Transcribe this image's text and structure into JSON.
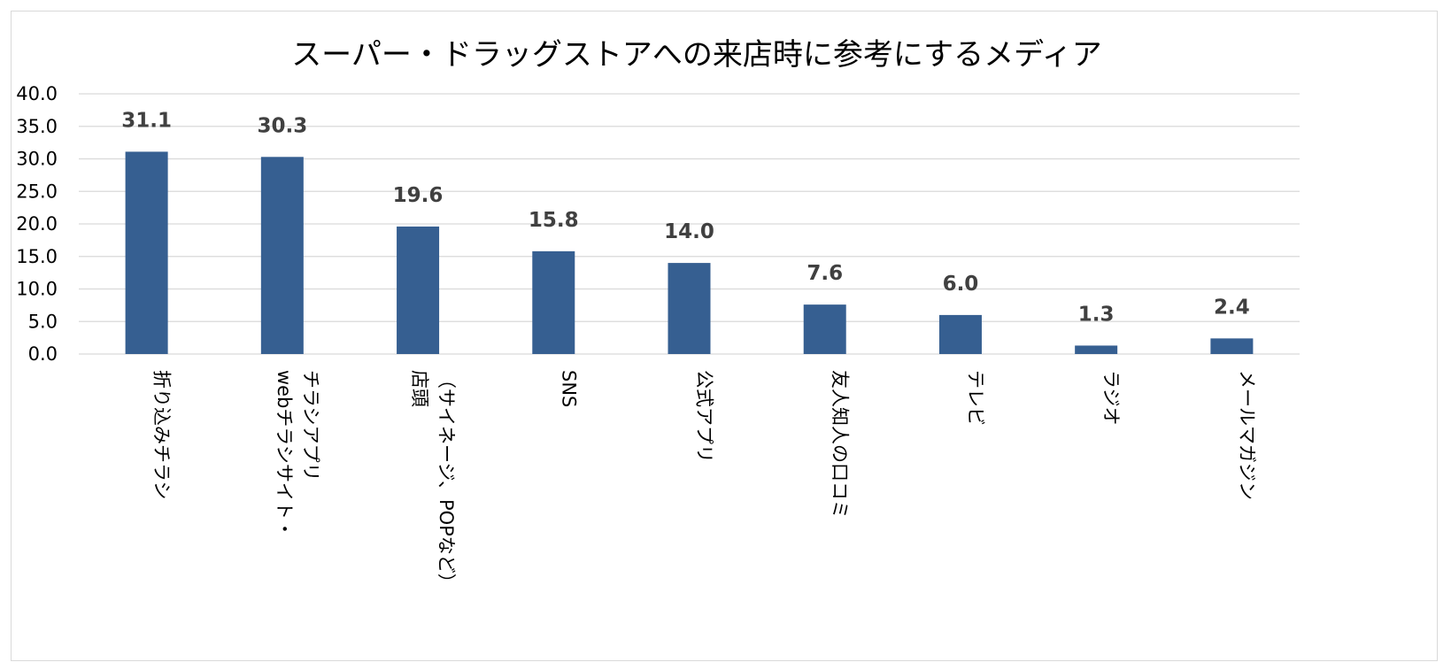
{
  "chart_data": {
    "type": "bar",
    "title": "スーパー・ドラッグストアへの来店時に参考にするメディア",
    "xlabel": "",
    "ylabel": "",
    "ylim": [
      0,
      40
    ],
    "yticks": [
      "0.0",
      "5.0",
      "10.0",
      "15.0",
      "20.0",
      "25.0",
      "30.0",
      "35.0",
      "40.0"
    ],
    "grid": true,
    "legend": "none",
    "categories": [
      [
        "折り込みチラシ"
      ],
      [
        "webチラシサイト・",
        "チラシアプリ"
      ],
      [
        "店頭",
        "（サイネージ、POPなど）"
      ],
      [
        "SNS"
      ],
      [
        "公式アプリ"
      ],
      [
        "友人知人の口コミ"
      ],
      [
        "テレビ"
      ],
      [
        "ラジオ"
      ],
      [
        "メールマガジン"
      ]
    ],
    "values": [
      31.1,
      30.3,
      19.6,
      15.8,
      14.0,
      7.6,
      6.0,
      1.3,
      2.4
    ],
    "value_labels": [
      "31.1",
      "30.3",
      "19.6",
      "15.8",
      "14.0",
      "7.6",
      "6.0",
      "1.3",
      "2.4"
    ],
    "colors": {
      "bar": "#365f91",
      "grid": "#d9d9d9",
      "frame": "#d9d9d9"
    }
  }
}
